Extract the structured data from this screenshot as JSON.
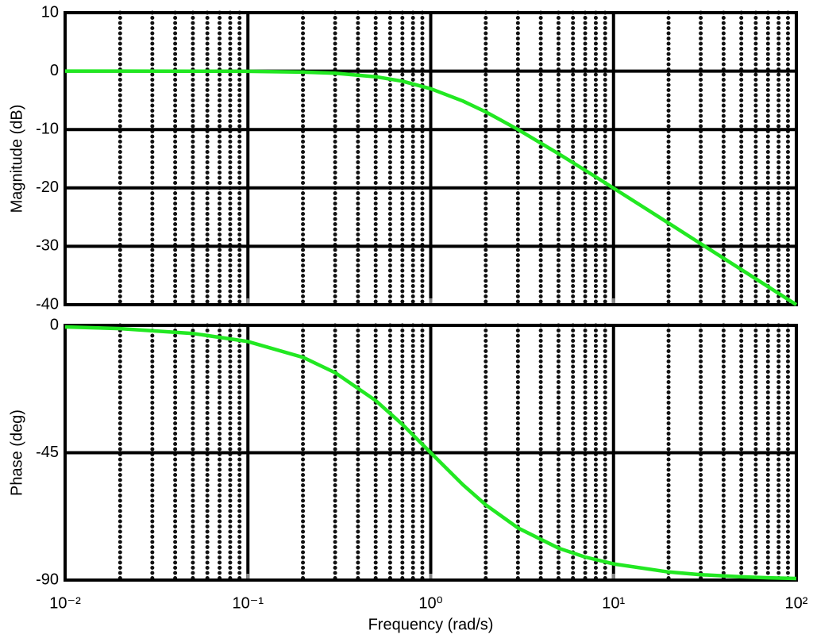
{
  "chart_data": [
    {
      "type": "line",
      "ylabel": "Magnitude (dB)",
      "xlog": true,
      "grid": true,
      "minor_grid": true,
      "color": "#22e822",
      "x": [
        0.01,
        0.02,
        0.05,
        0.1,
        0.2,
        0.3,
        0.5,
        0.7,
        1,
        1.5,
        2,
        3,
        5,
        7,
        10,
        20,
        30,
        50,
        70,
        100
      ],
      "values": [
        0,
        0,
        -0.01,
        -0.04,
        -0.17,
        -0.37,
        -0.97,
        -1.73,
        -3.01,
        -5.12,
        -6.99,
        -10,
        -14.15,
        -16.99,
        -20.04,
        -26.03,
        -29.55,
        -33.98,
        -36.9,
        -40
      ],
      "xlim": [
        0.01,
        100
      ],
      "xticks": [
        0.01,
        0.1,
        1,
        10,
        100
      ],
      "ylim": [
        -40,
        10
      ],
      "yticks": [
        10,
        0,
        -10,
        -20,
        -30,
        -40
      ]
    },
    {
      "type": "line",
      "ylabel": "Phase (deg)",
      "xlabel": "Frequency  (rad/s)",
      "xlog": true,
      "grid": true,
      "minor_grid": true,
      "color": "#22e822",
      "x": [
        0.01,
        0.02,
        0.05,
        0.1,
        0.2,
        0.3,
        0.5,
        0.7,
        1,
        1.5,
        2,
        3,
        5,
        7,
        10,
        20,
        30,
        50,
        70,
        100
      ],
      "values": [
        -0.57,
        -1.15,
        -2.86,
        -5.71,
        -11.31,
        -16.7,
        -26.57,
        -34.99,
        -45,
        -56.31,
        -63.43,
        -71.57,
        -78.69,
        -81.87,
        -84.29,
        -87.14,
        -88.09,
        -88.85,
        -89.18,
        -89.43
      ],
      "xlim": [
        0.01,
        100
      ],
      "xticks": [
        {
          "value": 0.01,
          "label": "10⁻²"
        },
        {
          "value": 0.1,
          "label": "10⁻¹"
        },
        {
          "value": 1,
          "label": "10⁰"
        },
        {
          "value": 10,
          "label": "10¹"
        },
        {
          "value": 100,
          "label": "10²"
        }
      ],
      "ylim": [
        -90,
        0
      ],
      "yticks": [
        0,
        -45,
        -90
      ]
    }
  ]
}
